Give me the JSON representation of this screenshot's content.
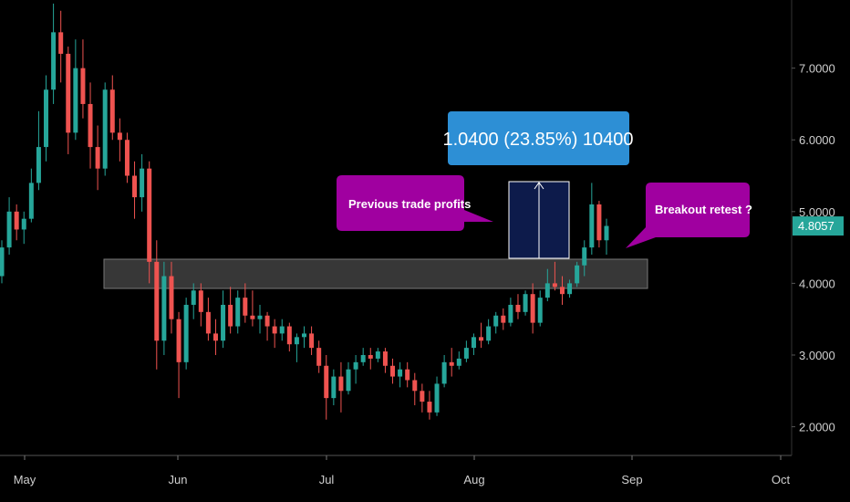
{
  "chart_data": {
    "type": "candlestick",
    "title": "",
    "xlabel": "",
    "ylabel": "",
    "ylim": [
      1.6,
      7.95
    ],
    "y_ticks": [
      "7.0000",
      "6.0000",
      "5.0000",
      "4.0000",
      "3.0000",
      "2.0000"
    ],
    "y_tick_values": [
      7,
      6,
      5,
      4,
      3,
      2
    ],
    "x_ticks": [
      "May",
      "Jun",
      "Jul",
      "Aug",
      "Sep",
      "Oct"
    ],
    "grid": false,
    "colors": {
      "up": "#26a69a",
      "down": "#ef5350",
      "background": "#000000",
      "axis_text": "#cfcfcf"
    },
    "last_price": "4.8057",
    "last_price_value": 4.8057,
    "candles_ohlc": [
      [
        4.1,
        4.6,
        4.0,
        4.5
      ],
      [
        4.5,
        5.2,
        4.4,
        5.0
      ],
      [
        5.0,
        5.1,
        4.6,
        4.75
      ],
      [
        4.75,
        5.0,
        4.55,
        4.9
      ],
      [
        4.9,
        5.6,
        4.85,
        5.4
      ],
      [
        5.4,
        6.4,
        5.3,
        5.9
      ],
      [
        5.9,
        6.9,
        5.7,
        6.7
      ],
      [
        6.7,
        7.9,
        6.5,
        7.5
      ],
      [
        7.5,
        7.8,
        6.8,
        7.2
      ],
      [
        7.2,
        7.3,
        5.8,
        6.1
      ],
      [
        6.1,
        7.4,
        6.0,
        7.0
      ],
      [
        7.0,
        7.4,
        6.3,
        6.5
      ],
      [
        6.5,
        6.8,
        5.6,
        5.9
      ],
      [
        5.9,
        6.2,
        5.3,
        5.6
      ],
      [
        5.6,
        6.8,
        5.5,
        6.7
      ],
      [
        6.7,
        6.9,
        6.0,
        6.1
      ],
      [
        6.1,
        6.3,
        5.7,
        6.0
      ],
      [
        6.0,
        6.1,
        5.4,
        5.5
      ],
      [
        5.5,
        5.7,
        4.9,
        5.2
      ],
      [
        5.2,
        5.8,
        5.0,
        5.6
      ],
      [
        5.6,
        5.7,
        4.0,
        4.3
      ],
      [
        4.3,
        4.6,
        2.8,
        3.2
      ],
      [
        3.2,
        4.3,
        3.0,
        4.1
      ],
      [
        4.1,
        4.3,
        3.3,
        3.5
      ],
      [
        3.5,
        3.6,
        2.4,
        2.9
      ],
      [
        2.9,
        3.8,
        2.8,
        3.7
      ],
      [
        3.7,
        4.0,
        3.5,
        3.9
      ],
      [
        3.9,
        4.0,
        3.4,
        3.6
      ],
      [
        3.6,
        3.8,
        3.2,
        3.3
      ],
      [
        3.3,
        3.5,
        3.0,
        3.2
      ],
      [
        3.2,
        3.9,
        3.1,
        3.7
      ],
      [
        3.7,
        3.95,
        3.3,
        3.4
      ],
      [
        3.4,
        3.9,
        3.3,
        3.8
      ],
      [
        3.8,
        4.0,
        3.45,
        3.55
      ],
      [
        3.55,
        3.9,
        3.4,
        3.5
      ],
      [
        3.5,
        3.7,
        3.3,
        3.55
      ],
      [
        3.55,
        3.6,
        3.2,
        3.4
      ],
      [
        3.4,
        3.5,
        3.1,
        3.3
      ],
      [
        3.3,
        3.5,
        3.2,
        3.4
      ],
      [
        3.4,
        3.45,
        3.05,
        3.15
      ],
      [
        3.15,
        3.3,
        2.9,
        3.25
      ],
      [
        3.25,
        3.4,
        3.1,
        3.3
      ],
      [
        3.3,
        3.4,
        3.0,
        3.1
      ],
      [
        3.1,
        3.2,
        2.75,
        2.85
      ],
      [
        2.85,
        3.0,
        2.1,
        2.4
      ],
      [
        2.4,
        2.8,
        2.3,
        2.7
      ],
      [
        2.7,
        2.9,
        2.2,
        2.5
      ],
      [
        2.5,
        2.9,
        2.45,
        2.8
      ],
      [
        2.8,
        3.0,
        2.6,
        2.9
      ],
      [
        2.9,
        3.1,
        2.85,
        3.0
      ],
      [
        3.0,
        3.1,
        2.8,
        2.95
      ],
      [
        2.95,
        3.1,
        2.9,
        3.05
      ],
      [
        3.05,
        3.1,
        2.75,
        2.85
      ],
      [
        2.85,
        2.95,
        2.6,
        2.7
      ],
      [
        2.7,
        2.9,
        2.55,
        2.8
      ],
      [
        2.8,
        2.9,
        2.55,
        2.65
      ],
      [
        2.65,
        2.75,
        2.3,
        2.5
      ],
      [
        2.5,
        2.6,
        2.2,
        2.35
      ],
      [
        2.35,
        2.5,
        2.1,
        2.2
      ],
      [
        2.2,
        2.7,
        2.15,
        2.6
      ],
      [
        2.6,
        3.0,
        2.55,
        2.9
      ],
      [
        2.9,
        3.1,
        2.7,
        2.85
      ],
      [
        2.85,
        3.05,
        2.8,
        2.95
      ],
      [
        2.95,
        3.2,
        2.9,
        3.1
      ],
      [
        3.1,
        3.3,
        3.0,
        3.25
      ],
      [
        3.25,
        3.45,
        3.1,
        3.2
      ],
      [
        3.2,
        3.5,
        3.15,
        3.4
      ],
      [
        3.4,
        3.6,
        3.3,
        3.55
      ],
      [
        3.55,
        3.65,
        3.35,
        3.45
      ],
      [
        3.45,
        3.8,
        3.4,
        3.7
      ],
      [
        3.7,
        3.85,
        3.5,
        3.6
      ],
      [
        3.6,
        3.9,
        3.55,
        3.85
      ],
      [
        3.85,
        4.0,
        3.3,
        3.45
      ],
      [
        3.45,
        3.9,
        3.4,
        3.8
      ],
      [
        3.8,
        4.2,
        3.75,
        4.0
      ],
      [
        4.0,
        4.3,
        3.9,
        3.95
      ],
      [
        3.95,
        4.1,
        3.7,
        3.85
      ],
      [
        3.85,
        4.05,
        3.8,
        4.0
      ],
      [
        4.0,
        4.3,
        3.95,
        4.25
      ],
      [
        4.25,
        4.6,
        4.1,
        4.5
      ],
      [
        4.5,
        5.4,
        4.4,
        5.1
      ],
      [
        5.1,
        5.15,
        4.5,
        4.6
      ],
      [
        4.6,
        4.9,
        4.4,
        4.8
      ]
    ]
  },
  "annotations": {
    "measure_label": "1.0400 (23.85%) 10400",
    "callout_1": "Previous trade profits",
    "callout_2": "Breakout retest ?",
    "colors": {
      "measure_box": "#2d8fd5",
      "measure_rect": "#0d1b4b",
      "callout": "#a000a0",
      "zone": "#4a4a4a",
      "price_tag": "#26a69a"
    }
  }
}
